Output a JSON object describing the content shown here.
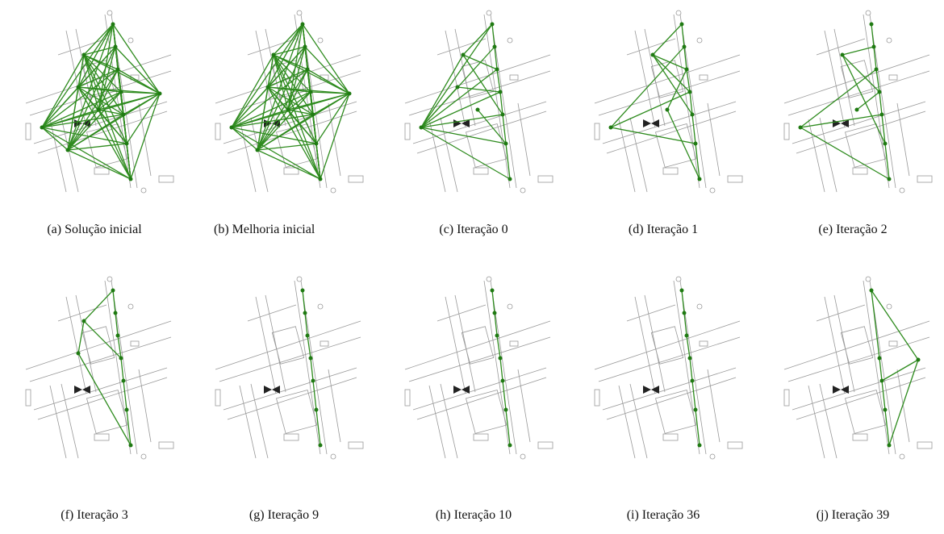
{
  "figures": [
    {
      "caption": "(a) Solução inicial"
    },
    {
      "caption": "(b) Melhoria inicial"
    },
    {
      "caption": "(c) Iteração 0"
    },
    {
      "caption": "(d) Iteração 1"
    },
    {
      "caption": "(e) Iteração 2"
    },
    {
      "caption": "(f) Iteração 3"
    },
    {
      "caption": "(g) Iteração 9"
    },
    {
      "caption": "(h) Iteração 10"
    },
    {
      "caption": "(i) Iteração 36"
    },
    {
      "caption": "(j) Iteração 39"
    }
  ]
}
